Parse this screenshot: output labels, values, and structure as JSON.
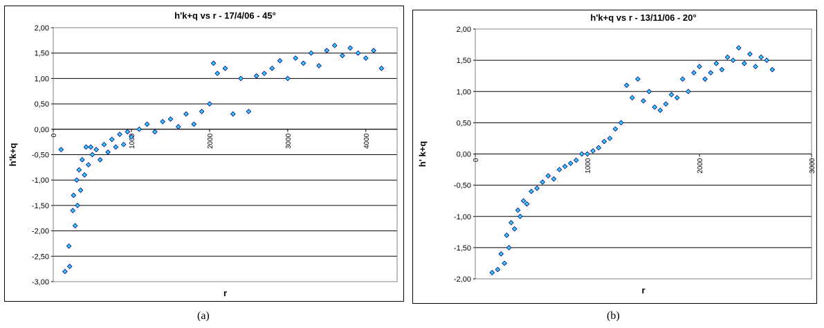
{
  "captions": {
    "a": "(a)",
    "b": "(b)"
  },
  "chart_data": [
    {
      "type": "scatter",
      "title": "h'k+q vs r - 17/4/06 - 45°",
      "xlabel": "r",
      "ylabel": "h'k+q",
      "xlim": [
        0,
        4400
      ],
      "ylim": [
        -3,
        2
      ],
      "yticks": [
        2,
        1.5,
        1,
        0.5,
        0,
        -0.5,
        -1,
        -1.5,
        -2,
        -2.5,
        -3
      ],
      "ytick_labels": [
        "2,00",
        "1,50",
        "1,00",
        "0,50",
        "0,00",
        "-0,50",
        "-1,00",
        "-1,50",
        "-2,00",
        "-2,50",
        "-3,00"
      ],
      "xticks": [
        0,
        1000,
        2000,
        3000,
        4000
      ],
      "xtick_labels": [
        "0",
        "1000",
        "2000",
        "3000",
        "4000"
      ],
      "grid": "horizontal",
      "marker": "diamond",
      "marker_color": "#33CCFF",
      "marker_edge": "#000080",
      "points": [
        [
          100,
          -0.4
        ],
        [
          150,
          -2.8
        ],
        [
          200,
          -2.3
        ],
        [
          210,
          -2.7
        ],
        [
          250,
          -1.6
        ],
        [
          260,
          -1.3
        ],
        [
          280,
          -1.9
        ],
        [
          300,
          -1.0
        ],
        [
          310,
          -1.5
        ],
        [
          330,
          -0.8
        ],
        [
          350,
          -1.2
        ],
        [
          370,
          -0.6
        ],
        [
          400,
          -0.9
        ],
        [
          420,
          -0.35
        ],
        [
          450,
          -0.7
        ],
        [
          480,
          -0.35
        ],
        [
          500,
          -0.5
        ],
        [
          550,
          -0.4
        ],
        [
          600,
          -0.6
        ],
        [
          650,
          -0.3
        ],
        [
          700,
          -0.45
        ],
        [
          750,
          -0.2
        ],
        [
          800,
          -0.35
        ],
        [
          850,
          -0.1
        ],
        [
          900,
          -0.3
        ],
        [
          950,
          -0.05
        ],
        [
          1000,
          -0.15
        ],
        [
          1100,
          0.0
        ],
        [
          1200,
          0.1
        ],
        [
          1300,
          -0.05
        ],
        [
          1400,
          0.15
        ],
        [
          1500,
          0.2
        ],
        [
          1600,
          0.05
        ],
        [
          1700,
          0.3
        ],
        [
          1800,
          0.1
        ],
        [
          1900,
          0.35
        ],
        [
          2000,
          0.5
        ],
        [
          2050,
          1.3
        ],
        [
          2100,
          1.1
        ],
        [
          2200,
          1.2
        ],
        [
          2300,
          0.3
        ],
        [
          2400,
          1.0
        ],
        [
          2500,
          0.35
        ],
        [
          2600,
          1.05
        ],
        [
          2700,
          1.1
        ],
        [
          2800,
          1.2
        ],
        [
          2900,
          1.35
        ],
        [
          3000,
          1.0
        ],
        [
          3100,
          1.4
        ],
        [
          3200,
          1.3
        ],
        [
          3300,
          1.5
        ],
        [
          3400,
          1.25
        ],
        [
          3500,
          1.55
        ],
        [
          3600,
          1.65
        ],
        [
          3700,
          1.45
        ],
        [
          3800,
          1.6
        ],
        [
          3900,
          1.5
        ],
        [
          4000,
          1.4
        ],
        [
          4100,
          1.55
        ],
        [
          4200,
          1.2
        ]
      ]
    },
    {
      "type": "scatter",
      "title": "h'k+q vs r - 13/11/06 - 20°",
      "xlabel": "r",
      "ylabel": "h' k+q",
      "xlim": [
        0,
        3000
      ],
      "ylim": [
        -2,
        2
      ],
      "yticks": [
        2,
        1.5,
        1,
        0.5,
        0,
        -0.5,
        -1,
        -1.5,
        -2
      ],
      "ytick_labels": [
        "2,00",
        "1,50",
        "1,00",
        "0,50",
        "0,00",
        "-0,50",
        "-1,00",
        "-1,50",
        "-2,00"
      ],
      "xticks": [
        0,
        1000,
        2000,
        3000
      ],
      "xtick_labels": [
        "0",
        "1000",
        "2000",
        "3000"
      ],
      "grid": "horizontal",
      "marker": "diamond",
      "marker_color": "#33CCFF",
      "marker_edge": "#000080",
      "points": [
        [
          150,
          -1.9
        ],
        [
          200,
          -1.85
        ],
        [
          230,
          -1.6
        ],
        [
          260,
          -1.75
        ],
        [
          280,
          -1.3
        ],
        [
          300,
          -1.5
        ],
        [
          320,
          -1.1
        ],
        [
          350,
          -1.2
        ],
        [
          380,
          -0.9
        ],
        [
          400,
          -1.0
        ],
        [
          430,
          -0.75
        ],
        [
          460,
          -0.8
        ],
        [
          500,
          -0.6
        ],
        [
          550,
          -0.55
        ],
        [
          600,
          -0.45
        ],
        [
          650,
          -0.35
        ],
        [
          700,
          -0.4
        ],
        [
          750,
          -0.25
        ],
        [
          800,
          -0.2
        ],
        [
          850,
          -0.15
        ],
        [
          900,
          -0.1
        ],
        [
          950,
          0.0
        ],
        [
          1000,
          0.0
        ],
        [
          1050,
          0.05
        ],
        [
          1100,
          0.1
        ],
        [
          1150,
          0.2
        ],
        [
          1200,
          0.25
        ],
        [
          1250,
          0.4
        ],
        [
          1300,
          0.5
        ],
        [
          1350,
          1.1
        ],
        [
          1400,
          0.9
        ],
        [
          1450,
          1.2
        ],
        [
          1500,
          0.85
        ],
        [
          1550,
          1.0
        ],
        [
          1600,
          0.75
        ],
        [
          1650,
          0.7
        ],
        [
          1700,
          0.8
        ],
        [
          1750,
          0.95
        ],
        [
          1800,
          0.9
        ],
        [
          1850,
          1.2
        ],
        [
          1900,
          1.0
        ],
        [
          1950,
          1.3
        ],
        [
          2000,
          1.4
        ],
        [
          2050,
          1.2
        ],
        [
          2100,
          1.3
        ],
        [
          2150,
          1.45
        ],
        [
          2200,
          1.35
        ],
        [
          2250,
          1.55
        ],
        [
          2300,
          1.5
        ],
        [
          2350,
          1.7
        ],
        [
          2400,
          1.45
        ],
        [
          2450,
          1.6
        ],
        [
          2500,
          1.4
        ],
        [
          2550,
          1.55
        ],
        [
          2600,
          1.5
        ],
        [
          2650,
          1.35
        ]
      ]
    }
  ]
}
